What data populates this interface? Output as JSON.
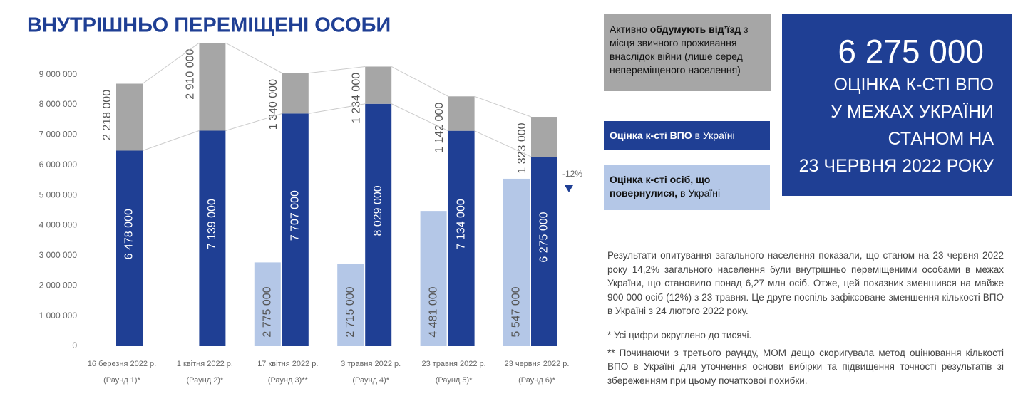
{
  "chart_data": {
    "type": "bar",
    "title": "ВНУТРІШНЬО ПЕРЕМІЩЕНІ ОСОБИ",
    "categories": [
      "16 березня 2022 р.",
      "1 квітня 2022 р.",
      "17 квітня 2022 р.",
      "3 травня 2022 р.",
      "23 травня 2022 р.",
      "23 червня 2022 р."
    ],
    "rounds": [
      "(Раунд 1)*",
      "(Раунд 2)*",
      "(Раунд 3)**",
      "(Раунд 4)*",
      "(Раунд 5)*",
      "(Раунд 6)*"
    ],
    "series": [
      {
        "name": [
          "Оцінка к-сті ВПО",
          " в Україні"
        ],
        "color": "#1f3f94",
        "values": [
          6478000,
          7139000,
          7707000,
          8029000,
          7134000,
          6275000
        ],
        "value_labels": [
          "6 478 000",
          "7 139 000",
          "7 707 000",
          "8 029 000",
          "7 134 000",
          "6 275 000"
        ]
      },
      {
        "name": [
          "Активно ",
          "обдумують від’їзд",
          " з місця звичного проживання внаслідок війни (лише серед непереміщеного населення)"
        ],
        "color": "#a6a6a6",
        "values": [
          2218000,
          2910000,
          1340000,
          1234000,
          1142000,
          1323000
        ],
        "value_labels": [
          "2 218 000",
          "2 910 000",
          "1 340 000",
          "1 234 000",
          "1 142 000",
          "1 323 000"
        ]
      },
      {
        "name": [
          "Оцінка к-сті осіб, що повернулися,",
          " в Україні"
        ],
        "color": "#b4c7e7",
        "values": [
          null,
          null,
          2775000,
          2715000,
          4481000,
          5547000
        ],
        "value_labels": [
          null,
          null,
          "2 775 000",
          "2 715 000",
          "4 481 000",
          "5 547 000"
        ]
      }
    ],
    "ylim": [
      0,
      10100000
    ],
    "yticks": [
      0,
      {
        "value": 1000000,
        "label": "1 000 000"
      },
      {
        "value": 2000000,
        "label": "2 000 000"
      },
      {
        "value": 3000000,
        "label": "3 000 000"
      },
      {
        "value": 4000000,
        "label": "4 000 000"
      },
      {
        "value": 5000000,
        "label": "5 000 000"
      },
      {
        "value": 6000000,
        "label": "6 000 000"
      },
      {
        "value": 7000000,
        "label": "7 000 000"
      },
      {
        "value": 8000000,
        "label": "8 000 000"
      },
      {
        "value": 9000000,
        "label": "9 000 000"
      }
    ],
    "annotation": "-12%"
  },
  "panel": {
    "number": "6 275 000",
    "lines": [
      "ОЦІНКА К-СТІ ВПО",
      "У МЕЖАХ УКРАЇНИ",
      "СТАНОМ НА",
      "23 ЧЕРВНЯ 2022 РОКУ"
    ]
  },
  "text": {
    "paragraph": "Результати опитування загального населення показали, що станом на 23 червня 2022 року 14,2% загального населення були внутрішньо переміщеними особами в межах України, що становило понад 6,27 млн осіб. Отже, цей показник зменшився на майже 900 000 осіб (12%) з 23 травня. Це друге поспіль зафіксоване зменшення кількості ВПО в Україні з 24 лютого 2022 року.",
    "notes": [
      "* Усі цифри округлено до тисячі.",
      "** Починаючи з третього раунду, МОМ дещо скоригувала метод оцінювання кількості ВПО в Україні для уточнення основи вибірки та підвищення точності результатів зі збереженням при цьому початкової похибки."
    ]
  }
}
